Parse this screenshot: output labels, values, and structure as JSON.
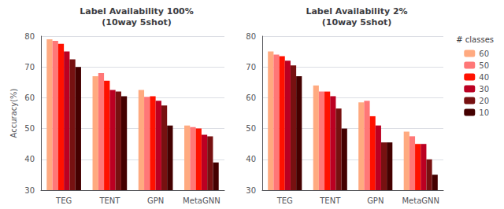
{
  "chart_data": [
    {
      "type": "bar",
      "title": "Label Availability 100%\n(10way 5shot)",
      "ylabel": "Accuracy(%)",
      "categories": [
        "TEG",
        "TENT",
        "GPN",
        "MetaGNN"
      ],
      "series": [
        {
          "name": "60",
          "color": "#FFAA80",
          "values": [
            79.0,
            67.0,
            62.5,
            51.0
          ]
        },
        {
          "name": "50",
          "color": "#FF7777",
          "values": [
            78.5,
            68.0,
            60.3,
            50.5
          ]
        },
        {
          "name": "40",
          "color": "#FF1100",
          "values": [
            77.5,
            65.5,
            60.5,
            50.0
          ]
        },
        {
          "name": "30",
          "color": "#BB0022",
          "values": [
            75.0,
            62.5,
            59.0,
            48.0
          ]
        },
        {
          "name": "20",
          "color": "#771111",
          "values": [
            72.5,
            62.0,
            57.5,
            47.5
          ]
        },
        {
          "name": "10",
          "color": "#440000",
          "values": [
            70.0,
            60.5,
            51.0,
            39.0
          ]
        }
      ],
      "ylim": [
        30,
        80
      ],
      "yticks": [
        30,
        40,
        50,
        60,
        70,
        80
      ],
      "grid": true
    },
    {
      "type": "bar",
      "title": "Label Availability 2%\n(10way 5shot)",
      "categories": [
        "TEG",
        "TENT",
        "GPN",
        "MetaGNN"
      ],
      "series": [
        {
          "name": "60",
          "color": "#FFAA80",
          "values": [
            75.0,
            64.0,
            58.5,
            49.0
          ]
        },
        {
          "name": "50",
          "color": "#FF7777",
          "values": [
            74.0,
            62.0,
            59.0,
            47.5
          ]
        },
        {
          "name": "40",
          "color": "#FF1100",
          "values": [
            73.5,
            62.0,
            54.0,
            45.0
          ]
        },
        {
          "name": "30",
          "color": "#BB0022",
          "values": [
            72.0,
            60.5,
            51.0,
            45.0
          ]
        },
        {
          "name": "20",
          "color": "#771111",
          "values": [
            70.5,
            56.5,
            45.5,
            40.0
          ]
        },
        {
          "name": "10",
          "color": "#440000",
          "values": [
            67.0,
            50.0,
            45.5,
            35.0
          ]
        }
      ],
      "ylim": [
        30,
        80
      ],
      "yticks": [
        30,
        40,
        50,
        60,
        70,
        80
      ],
      "grid": true,
      "legend": "upper right",
      "legend_title": "# classes"
    }
  ]
}
